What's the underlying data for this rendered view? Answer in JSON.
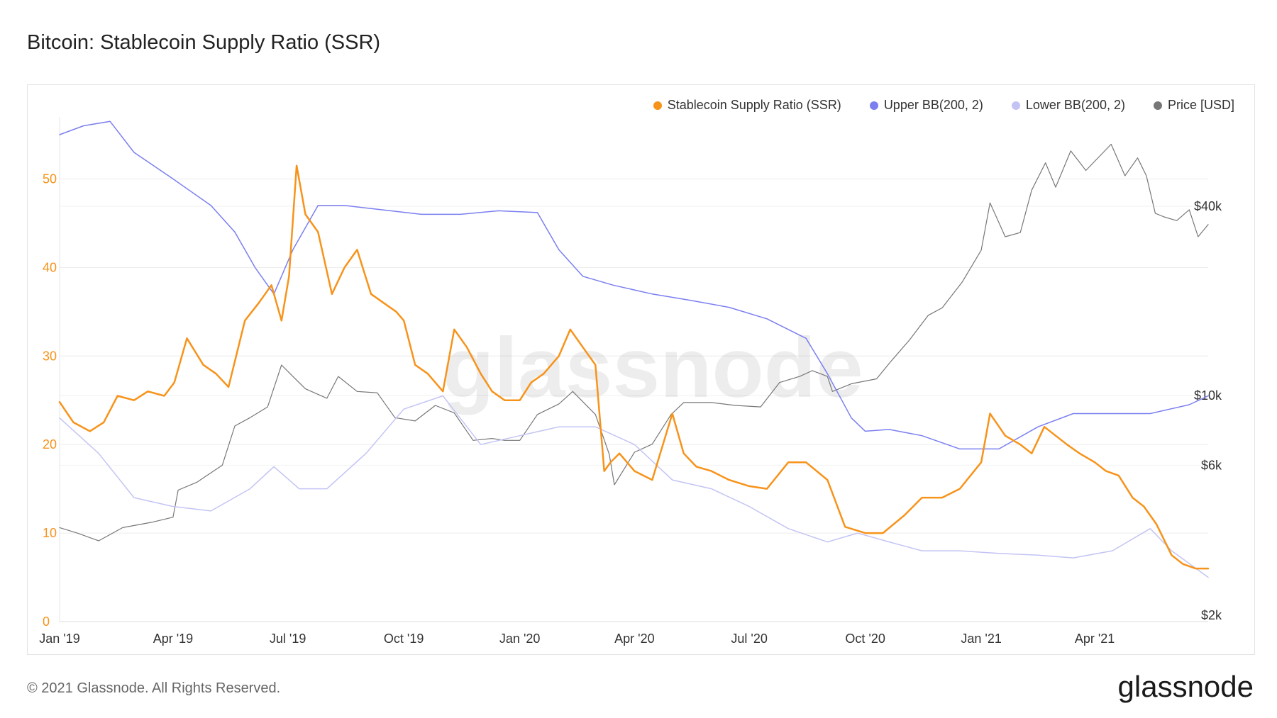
{
  "page": {
    "title": "Bitcoin: Stablecoin Supply Ratio (SSR)",
    "footer": "© 2021 Glassnode. All Rights Reserved.",
    "brand": "glassnode",
    "watermark": "glassnode"
  },
  "legend": {
    "items": [
      {
        "label": "Stablecoin Supply Ratio (SSR)",
        "color": "#f7931a"
      },
      {
        "label": "Upper BB(200, 2)",
        "color": "#7b7ff0"
      },
      {
        "label": "Lower BB(200, 2)",
        "color": "#c3c4f4"
      },
      {
        "label": "Price [USD]",
        "color": "#777777"
      }
    ]
  },
  "chart_data": {
    "type": "line",
    "x_ticks": [
      "Jan '19",
      "Apr '19",
      "Jul '19",
      "Oct '19",
      "Jan '20",
      "Apr '20",
      "Jul '20",
      "Oct '20",
      "Jan '21",
      "Apr '21"
    ],
    "y_left": {
      "ticks": [
        "0",
        "10",
        "20",
        "30",
        "40",
        "50"
      ],
      "tick_values": [
        0,
        10,
        20,
        30,
        40,
        50
      ],
      "range": [
        0,
        57
      ],
      "color": "#f7931a"
    },
    "y_right": {
      "ticks": [
        "$2k",
        "$6k",
        "$10k",
        "$40k"
      ],
      "tick_values": [
        2000,
        6000,
        10000,
        40000
      ],
      "scale": "log",
      "color": "#333333"
    },
    "grid": true,
    "legend_position": "top-right",
    "series": [
      {
        "name": "Stablecoin Supply Ratio (SSR)",
        "axis": "left",
        "color": "#f7931a",
        "width": 2.5,
        "x": [
          "2019-01-01",
          "2019-01-12",
          "2019-01-25",
          "2019-02-05",
          "2019-02-16",
          "2019-03-01",
          "2019-03-12",
          "2019-03-25",
          "2019-04-02",
          "2019-04-12",
          "2019-04-25",
          "2019-05-05",
          "2019-05-15",
          "2019-05-28",
          "2019-06-08",
          "2019-06-18",
          "2019-06-26",
          "2019-07-02",
          "2019-07-08",
          "2019-07-15",
          "2019-07-25",
          "2019-08-05",
          "2019-08-15",
          "2019-08-25",
          "2019-09-05",
          "2019-09-15",
          "2019-09-25",
          "2019-10-01",
          "2019-10-10",
          "2019-10-20",
          "2019-11-01",
          "2019-11-10",
          "2019-11-20",
          "2019-12-01",
          "2019-12-10",
          "2019-12-20",
          "2020-01-01",
          "2020-01-10",
          "2020-01-20",
          "2020-02-01",
          "2020-02-10",
          "2020-02-20",
          "2020-03-01",
          "2020-03-08",
          "2020-03-13",
          "2020-03-20",
          "2020-04-01",
          "2020-04-15",
          "2020-05-01",
          "2020-05-10",
          "2020-05-20",
          "2020-06-01",
          "2020-06-15",
          "2020-07-01",
          "2020-07-15",
          "2020-08-01",
          "2020-08-15",
          "2020-09-01",
          "2020-09-15",
          "2020-10-01",
          "2020-10-15",
          "2020-11-01",
          "2020-11-15",
          "2020-12-01",
          "2020-12-15",
          "2021-01-01",
          "2021-01-08",
          "2021-01-20",
          "2021-02-01",
          "2021-02-10",
          "2021-02-20",
          "2021-03-01",
          "2021-03-10",
          "2021-03-20",
          "2021-04-01",
          "2021-04-10",
          "2021-04-20",
          "2021-05-01",
          "2021-05-10",
          "2021-05-20",
          "2021-06-01",
          "2021-06-10",
          "2021-06-20",
          "2021-06-30"
        ],
        "values": [
          24.8,
          22.5,
          21.5,
          22.5,
          25.5,
          25,
          26,
          25.5,
          27,
          32,
          29,
          28,
          26.5,
          34,
          36,
          38,
          34,
          39,
          51.5,
          46,
          44,
          37,
          40,
          42,
          37,
          36,
          35,
          34,
          29,
          28,
          26,
          33,
          31,
          28,
          26,
          25,
          25,
          27,
          28,
          30,
          33,
          31,
          29,
          17,
          18,
          19,
          17,
          16,
          23.5,
          19,
          17.5,
          17,
          16,
          15.3,
          15,
          18,
          18,
          16,
          10.7,
          10,
          10,
          12,
          14,
          14,
          15,
          18,
          23.5,
          21,
          20,
          19,
          22,
          21,
          20,
          19,
          18,
          17,
          16.5,
          14,
          13,
          11,
          7.5,
          6.5,
          6,
          6
        ]
      },
      {
        "name": "Upper BB(200, 2)",
        "axis": "left",
        "color": "#7b7ff0",
        "width": 1.5,
        "x": [
          "2019-01-01",
          "2019-01-20",
          "2019-02-10",
          "2019-03-01",
          "2019-04-01",
          "2019-05-01",
          "2019-05-20",
          "2019-06-05",
          "2019-06-20",
          "2019-07-05",
          "2019-07-25",
          "2019-08-15",
          "2019-09-15",
          "2019-10-15",
          "2019-11-15",
          "2019-12-15",
          "2020-01-15",
          "2020-02-01",
          "2020-02-20",
          "2020-03-15",
          "2020-04-15",
          "2020-05-15",
          "2020-06-15",
          "2020-07-15",
          "2020-08-15",
          "2020-09-01",
          "2020-09-20",
          "2020-10-01",
          "2020-10-20",
          "2020-11-15",
          "2020-12-15",
          "2021-01-15",
          "2021-02-15",
          "2021-03-15",
          "2021-04-15",
          "2021-05-15",
          "2021-06-15",
          "2021-06-30"
        ],
        "values": [
          55,
          56,
          56.5,
          53,
          50,
          47,
          44,
          40,
          37,
          42,
          47,
          47,
          46.5,
          46,
          46,
          46.4,
          46.2,
          42,
          39,
          38,
          37,
          36.3,
          35.5,
          34.2,
          32,
          28,
          23,
          21.5,
          21.7,
          21,
          19.5,
          19.5,
          22,
          23.5,
          23.5,
          23.5,
          24.5,
          25.5
        ]
      },
      {
        "name": "Lower BB(200, 2)",
        "axis": "left",
        "color": "#c3c4f4",
        "width": 1.5,
        "x": [
          "2019-01-01",
          "2019-02-01",
          "2019-03-01",
          "2019-04-01",
          "2019-05-01",
          "2019-06-01",
          "2019-06-20",
          "2019-07-10",
          "2019-08-01",
          "2019-09-01",
          "2019-10-01",
          "2019-11-01",
          "2019-12-01",
          "2020-01-01",
          "2020-02-01",
          "2020-03-01",
          "2020-04-01",
          "2020-05-01",
          "2020-06-01",
          "2020-07-01",
          "2020-08-01",
          "2020-09-01",
          "2020-09-25",
          "2020-10-20",
          "2020-11-15",
          "2020-12-15",
          "2021-01-15",
          "2021-02-15",
          "2021-03-15",
          "2021-04-15",
          "2021-05-15",
          "2021-06-01",
          "2021-06-30"
        ],
        "values": [
          23,
          19,
          14,
          13,
          12.5,
          15,
          17.5,
          15,
          15,
          19,
          24,
          25.5,
          20,
          21,
          22,
          22,
          20,
          16,
          15,
          13,
          10.5,
          9,
          10,
          9,
          8,
          8,
          7.7,
          7.5,
          7.2,
          8,
          10.5,
          8,
          5
        ]
      },
      {
        "name": "Price [USD]",
        "axis": "right",
        "color": "#777777",
        "width": 1.2,
        "x": [
          "2019-01-01",
          "2019-01-15",
          "2019-02-01",
          "2019-02-20",
          "2019-03-15",
          "2019-04-01",
          "2019-04-05",
          "2019-04-20",
          "2019-05-10",
          "2019-05-20",
          "2019-06-01",
          "2019-06-15",
          "2019-06-26",
          "2019-07-05",
          "2019-07-15",
          "2019-08-01",
          "2019-08-10",
          "2019-08-25",
          "2019-09-10",
          "2019-09-24",
          "2019-10-10",
          "2019-10-26",
          "2019-11-10",
          "2019-11-25",
          "2019-12-10",
          "2019-12-20",
          "2020-01-01",
          "2020-01-15",
          "2020-02-01",
          "2020-02-12",
          "2020-03-01",
          "2020-03-12",
          "2020-03-16",
          "2020-04-01",
          "2020-04-15",
          "2020-04-30",
          "2020-05-10",
          "2020-06-01",
          "2020-06-20",
          "2020-07-10",
          "2020-07-25",
          "2020-08-10",
          "2020-08-20",
          "2020-09-01",
          "2020-09-05",
          "2020-09-20",
          "2020-10-10",
          "2020-10-21",
          "2020-11-05",
          "2020-11-20",
          "2020-12-01",
          "2020-12-17",
          "2021-01-01",
          "2021-01-08",
          "2021-01-20",
          "2021-02-01",
          "2021-02-10",
          "2021-02-21",
          "2021-03-01",
          "2021-03-13",
          "2021-03-25",
          "2021-04-14",
          "2021-04-25",
          "2021-05-05",
          "2021-05-12",
          "2021-05-19",
          "2021-05-26",
          "2021-06-05",
          "2021-06-15",
          "2021-06-22",
          "2021-06-30"
        ],
        "values": [
          3800,
          3650,
          3450,
          3800,
          3950,
          4100,
          5000,
          5300,
          6000,
          8000,
          8500,
          9200,
          12500,
          11500,
          10500,
          9800,
          11500,
          10300,
          10200,
          8500,
          8300,
          9300,
          8800,
          7200,
          7300,
          7200,
          7200,
          8700,
          9400,
          10300,
          8700,
          6500,
          5200,
          6600,
          7000,
          8700,
          9500,
          9500,
          9300,
          9200,
          11000,
          11500,
          12000,
          11500,
          10300,
          10900,
          11300,
          12800,
          15000,
          18000,
          19000,
          23000,
          29000,
          41000,
          32000,
          33000,
          45000,
          55000,
          46000,
          60000,
          52000,
          63000,
          50000,
          57000,
          50000,
          38000,
          37000,
          36000,
          39000,
          32000,
          35000
        ]
      }
    ]
  }
}
